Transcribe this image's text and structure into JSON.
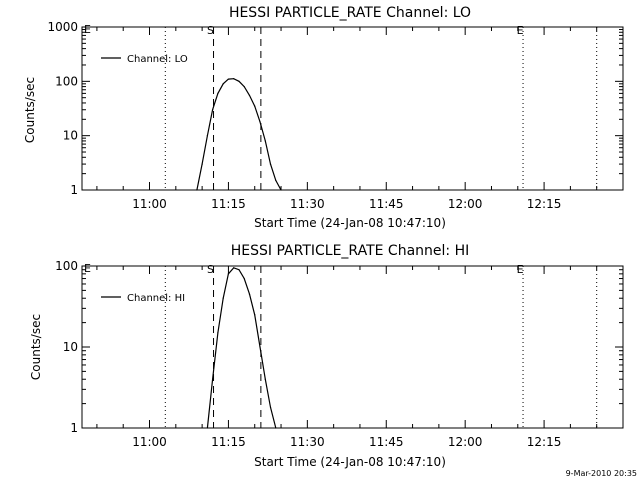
{
  "footer": {
    "date_stamp": "9-Mar-2010 20:35"
  },
  "chart_data": [
    {
      "type": "line",
      "title": "HESSI PARTICLE_RATE Channel: LO",
      "xlabel": "Start Time (24-Jan-08 10:47:10)",
      "ylabel": "Counts/sec",
      "y_scale": "log",
      "ylim": [
        1,
        1000
      ],
      "y_ticks": [
        "1",
        "10",
        "100",
        "1000"
      ],
      "x_tick_labels": [
        "11:00",
        "11:15",
        "11:30",
        "11:45",
        "12:00",
        "12:15"
      ],
      "xlim": [
        "10:47:10",
        "12:30:00"
      ],
      "legend": {
        "position": "top-left",
        "entries": [
          "Channel: LO"
        ]
      },
      "grid": false,
      "series": [
        {
          "name": "Channel: LO",
          "x": [
            "11:09:00",
            "11:10:00",
            "11:11:00",
            "11:12:00",
            "11:13:00",
            "11:14:00",
            "11:15:00",
            "11:16:00",
            "11:17:00",
            "11:18:00",
            "11:19:00",
            "11:20:00",
            "11:21:00",
            "11:22:00",
            "11:23:00",
            "11:24:00",
            "11:25:00"
          ],
          "values": [
            1,
            3,
            10,
            30,
            60,
            90,
            110,
            112,
            100,
            80,
            55,
            35,
            18,
            8,
            3,
            1.5,
            1
          ]
        }
      ],
      "vertical_markers": [
        {
          "label": "",
          "time": "11:03:00",
          "style": "dotted"
        },
        {
          "label": "S",
          "time": "11:12:10",
          "style": "dashed"
        },
        {
          "label": "",
          "time": "11:21:10",
          "style": "dashed"
        },
        {
          "label": "E",
          "time": "12:11:00",
          "style": "dotted"
        },
        {
          "label": "",
          "time": "12:25:00",
          "style": "dotted"
        }
      ],
      "corner_label": "E"
    },
    {
      "type": "line",
      "title": "HESSI PARTICLE_RATE Channel: HI",
      "xlabel": "Start Time (24-Jan-08 10:47:10)",
      "ylabel": "Counts/sec",
      "y_scale": "log",
      "ylim": [
        1,
        100
      ],
      "y_ticks": [
        "1",
        "10",
        "100"
      ],
      "x_tick_labels": [
        "11:00",
        "11:15",
        "11:30",
        "11:45",
        "12:00",
        "12:15"
      ],
      "xlim": [
        "10:47:10",
        "12:30:00"
      ],
      "legend": {
        "position": "top-left",
        "entries": [
          "Channel: HI"
        ]
      },
      "grid": false,
      "series": [
        {
          "name": "Channel: HI",
          "x": [
            "11:11:00",
            "11:12:00",
            "11:13:00",
            "11:14:00",
            "11:15:00",
            "11:16:00",
            "11:17:00",
            "11:18:00",
            "11:19:00",
            "11:20:00",
            "11:21:00",
            "11:22:00",
            "11:23:00",
            "11:24:00"
          ],
          "values": [
            1,
            4,
            15,
            40,
            80,
            95,
            90,
            70,
            45,
            25,
            10,
            4,
            1.8,
            1
          ]
        }
      ],
      "vertical_markers": [
        {
          "label": "",
          "time": "11:03:00",
          "style": "dotted"
        },
        {
          "label": "S",
          "time": "11:12:10",
          "style": "dashed"
        },
        {
          "label": "",
          "time": "11:21:10",
          "style": "dashed"
        },
        {
          "label": "E",
          "time": "12:11:00",
          "style": "dotted"
        },
        {
          "label": "",
          "time": "12:25:00",
          "style": "dotted"
        }
      ],
      "corner_label": "E"
    }
  ]
}
